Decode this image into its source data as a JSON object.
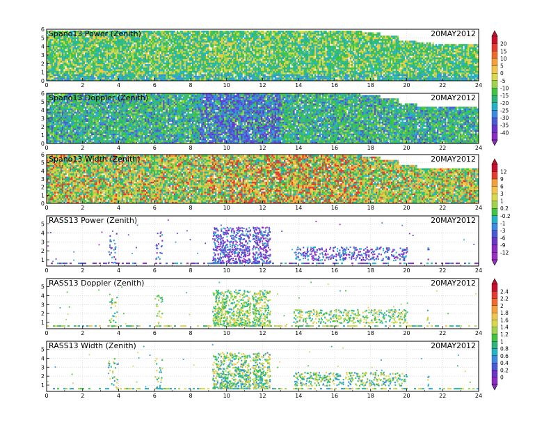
{
  "chart_data": [
    {
      "type": "heatmap",
      "title": "Spano13 Power (Zenith)",
      "date": "20MAY2012",
      "x_ticks": [
        "0",
        "2",
        "4",
        "6",
        "8",
        "10",
        "12",
        "14",
        "16",
        "18",
        "20",
        "22",
        "24"
      ],
      "y_ticks": [
        "0",
        "1",
        "2",
        "3",
        "4",
        "5",
        "6"
      ],
      "xlim": [
        0,
        24
      ],
      "ylim": [
        0,
        6
      ],
      "pattern": "spano_power",
      "colorbar": "A",
      "coverage_top_km": [
        6,
        6,
        6,
        6,
        6,
        6,
        6,
        6,
        6,
        6,
        6,
        6,
        6,
        6,
        6,
        6,
        6,
        6,
        5.6,
        5.2,
        4.6,
        4.3,
        4.2,
        4.2,
        4.2
      ]
    },
    {
      "type": "heatmap",
      "title": "Spano13 Doppler (Zenith)",
      "date": "20MAY2012",
      "x_ticks": [
        "0",
        "2",
        "4",
        "6",
        "8",
        "10",
        "12",
        "14",
        "16",
        "18",
        "20",
        "22",
        "24"
      ],
      "y_ticks": [
        "0",
        "1",
        "2",
        "3",
        "4",
        "5",
        "6"
      ],
      "xlim": [
        0,
        24
      ],
      "ylim": [
        0,
        6
      ],
      "pattern": "spano_doppler",
      "colorbar": "A",
      "coverage_top_km": [
        6,
        6,
        6,
        6,
        6,
        6,
        6,
        6,
        6,
        6,
        6,
        6,
        6,
        6,
        6,
        6,
        6,
        6,
        5.6,
        5.2,
        4.6,
        4.3,
        4.2,
        4.2,
        4.2
      ]
    },
    {
      "type": "heatmap",
      "title": "Spano13 Width (Zenith)",
      "date": "20MAY2012",
      "x_ticks": [
        "0",
        "2",
        "4",
        "6",
        "8",
        "10",
        "12",
        "14",
        "16",
        "18",
        "20",
        "22",
        "24"
      ],
      "y_ticks": [
        "0",
        "1",
        "2",
        "3",
        "4",
        "5",
        "6"
      ],
      "xlim": [
        0,
        24
      ],
      "ylim": [
        0,
        6
      ],
      "pattern": "spano_width",
      "colorbar": "B",
      "coverage_top_km": [
        6,
        6,
        6,
        6,
        6,
        6,
        6,
        6,
        6,
        6,
        6,
        6,
        6,
        6,
        6,
        6,
        6,
        6,
        5.6,
        5.2,
        4.6,
        4.3,
        4.2,
        4.2,
        4.2
      ]
    },
    {
      "type": "heatmap",
      "title": "RASS13 Power (Zenith)",
      "date": "20MAY2012",
      "x_ticks": [
        "0",
        "2",
        "4",
        "6",
        "8",
        "10",
        "12",
        "14",
        "16",
        "18",
        "20",
        "22",
        "24"
      ],
      "y_ticks": [
        "1",
        "2",
        "3",
        "4",
        "5"
      ],
      "xlim": [
        0,
        24
      ],
      "ylim": [
        0.3,
        5.9
      ],
      "pattern": "rass_power",
      "colorbar": "B",
      "activity_hours": [
        [
          3.4,
          3.9
        ],
        [
          6.0,
          6.4
        ],
        [
          9.2,
          11.3
        ],
        [
          11.4,
          12.4
        ],
        [
          13.7,
          20.0
        ],
        [
          21.1,
          21.2
        ]
      ]
    },
    {
      "type": "heatmap",
      "title": "RASS13 Doppler (Zenith)",
      "date": "20MAY2012",
      "x_ticks": [
        "0",
        "2",
        "4",
        "6",
        "8",
        "10",
        "12",
        "14",
        "16",
        "18",
        "20",
        "22",
        "24"
      ],
      "y_ticks": [
        "1",
        "2",
        "3",
        "4",
        "5"
      ],
      "xlim": [
        0,
        24
      ],
      "ylim": [
        0.3,
        5.9
      ],
      "pattern": "rass_doppler",
      "colorbar": "C",
      "activity_hours": [
        [
          3.4,
          3.9
        ],
        [
          6.0,
          6.4
        ],
        [
          9.2,
          11.3
        ],
        [
          11.4,
          12.4
        ],
        [
          13.7,
          20.0
        ],
        [
          21.1,
          21.2
        ]
      ]
    },
    {
      "type": "heatmap",
      "title": "RASS13 Width (Zenith)",
      "date": "20MAY2012",
      "x_ticks": [
        "0",
        "2",
        "4",
        "6",
        "8",
        "10",
        "12",
        "14",
        "16",
        "18",
        "20",
        "22",
        "24"
      ],
      "y_ticks": [
        "1",
        "2",
        "3",
        "4",
        "5"
      ],
      "xlim": [
        0,
        24
      ],
      "ylim": [
        0.3,
        5.9
      ],
      "pattern": "rass_width",
      "colorbar": "C",
      "activity_hours": [
        [
          3.4,
          3.9
        ],
        [
          6.0,
          6.4
        ],
        [
          9.2,
          11.3
        ],
        [
          11.4,
          12.4
        ],
        [
          13.7,
          20.0
        ],
        [
          21.1,
          21.2
        ]
      ]
    }
  ],
  "colorbars": {
    "A": {
      "labels": [
        "20",
        "15",
        "10",
        "5",
        "0",
        "-5",
        "-10",
        "-15",
        "-20",
        "-25",
        "-30",
        "-35",
        "-40"
      ],
      "colors": [
        "#c8102e",
        "#e63b2e",
        "#f26a2a",
        "#f6a03a",
        "#f2c64a",
        "#d9d94a",
        "#9fd54a",
        "#41c43f",
        "#2ab57a",
        "#22b3c9",
        "#3b8be0",
        "#4b58d8",
        "#6a33c9",
        "#8c2bc0"
      ]
    },
    "B": {
      "labels": [
        "12",
        "9",
        "6",
        "3",
        "1",
        "0.2",
        "-0.2",
        "-1",
        "-3",
        "-6",
        "-9",
        "-12"
      ],
      "colors": [
        "#c8102e",
        "#e63b2e",
        "#f6a03a",
        "#f2c64a",
        "#d9d94a",
        "#9fd54a",
        "#41c43f",
        "#22b3c9",
        "#3b8be0",
        "#4b58d8",
        "#6a33c9",
        "#8c2bc0",
        "#9a2fc4"
      ]
    },
    "C": {
      "labels": [
        "2.4",
        "2.2",
        "2",
        "1.8",
        "1.6",
        "1.4",
        "1.2",
        "1",
        "0.8",
        "0.6",
        "0.4",
        "0.2",
        "0"
      ],
      "colors": [
        "#c8102e",
        "#e63b2e",
        "#f26a2a",
        "#f6a03a",
        "#f2c64a",
        "#d9d94a",
        "#9fd54a",
        "#41c43f",
        "#2ab57a",
        "#22b3c9",
        "#3b8be0",
        "#4b58d8",
        "#6a33c9",
        "#8c2bc0"
      ]
    }
  }
}
